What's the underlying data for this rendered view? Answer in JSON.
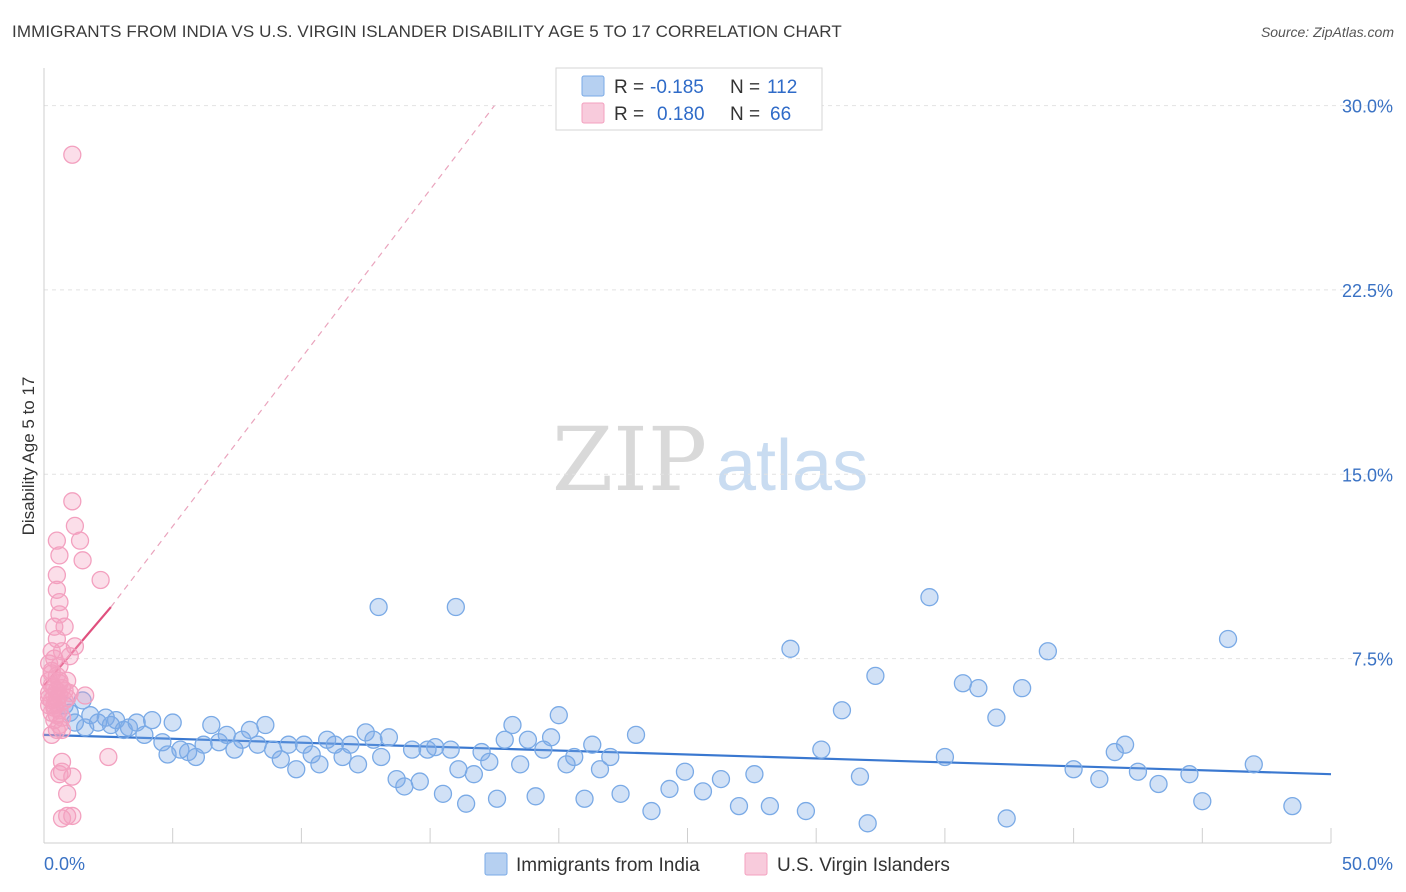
{
  "title": "IMMIGRANTS FROM INDIA VS U.S. VIRGIN ISLANDER DISABILITY AGE 5 TO 17 CORRELATION CHART",
  "source": "Source: ZipAtlas.com",
  "watermark": {
    "zip": "ZIP",
    "atlas": "atlas"
  },
  "chart_data": {
    "type": "scatter",
    "title": "IMMIGRANTS FROM INDIA VS U.S. VIRGIN ISLANDER DISABILITY AGE 5 TO 17 CORRELATION CHART",
    "xlabel": "",
    "ylabel": "Disability Age 5 to 17",
    "xlim": [
      0,
      50
    ],
    "ylim": [
      0,
      31
    ],
    "x_tick_labels": [
      "0.0%",
      "50.0%"
    ],
    "y_ticks": [
      7.5,
      15.0,
      22.5,
      30.0
    ],
    "y_tick_labels": [
      "7.5%",
      "15.0%",
      "22.5%",
      "30.0%"
    ],
    "grid": true,
    "legend_stats": [
      {
        "r_label": "R =",
        "r": "-0.185",
        "n_label": "N =",
        "n": "112"
      },
      {
        "r_label": "R =",
        "r": "0.180",
        "n_label": "N =",
        "n": "66"
      }
    ],
    "series": [
      {
        "name": "Immigrants from India",
        "color": "#7aaae6",
        "line_color": "#3a78d0",
        "trend": {
          "x0": 0,
          "y0": 4.4,
          "x1": 50,
          "y1": 2.8
        },
        "points": [
          [
            0.8,
            5.6
          ],
          [
            1.0,
            5.3
          ],
          [
            1.2,
            4.9
          ],
          [
            1.5,
            5.8
          ],
          [
            1.6,
            4.7
          ],
          [
            1.8,
            5.2
          ],
          [
            2.1,
            4.9
          ],
          [
            2.4,
            5.1
          ],
          [
            2.6,
            4.8
          ],
          [
            2.8,
            5.0
          ],
          [
            3.1,
            4.6
          ],
          [
            3.3,
            4.7
          ],
          [
            3.6,
            4.9
          ],
          [
            3.9,
            4.4
          ],
          [
            4.2,
            5.0
          ],
          [
            4.6,
            4.1
          ],
          [
            4.8,
            3.6
          ],
          [
            5.0,
            4.9
          ],
          [
            5.3,
            3.8
          ],
          [
            5.6,
            3.7
          ],
          [
            5.9,
            3.5
          ],
          [
            6.2,
            4.0
          ],
          [
            6.5,
            4.8
          ],
          [
            6.8,
            4.1
          ],
          [
            7.1,
            4.4
          ],
          [
            7.4,
            3.8
          ],
          [
            7.7,
            4.2
          ],
          [
            8.0,
            4.6
          ],
          [
            8.3,
            4.0
          ],
          [
            8.6,
            4.8
          ],
          [
            8.9,
            3.8
          ],
          [
            9.2,
            3.4
          ],
          [
            9.5,
            4.0
          ],
          [
            9.8,
            3.0
          ],
          [
            10.1,
            4.0
          ],
          [
            10.4,
            3.6
          ],
          [
            10.7,
            3.2
          ],
          [
            11.0,
            4.2
          ],
          [
            11.3,
            4.0
          ],
          [
            11.6,
            3.5
          ],
          [
            11.9,
            4.0
          ],
          [
            12.2,
            3.2
          ],
          [
            12.5,
            4.5
          ],
          [
            12.8,
            4.2
          ],
          [
            13.1,
            3.5
          ],
          [
            13.4,
            4.3
          ],
          [
            13.7,
            2.6
          ],
          [
            14.0,
            2.3
          ],
          [
            14.3,
            3.8
          ],
          [
            14.6,
            2.5
          ],
          [
            14.9,
            3.8
          ],
          [
            15.2,
            3.9
          ],
          [
            15.5,
            2.0
          ],
          [
            15.8,
            3.8
          ],
          [
            16.1,
            3.0
          ],
          [
            16.4,
            1.6
          ],
          [
            16.7,
            2.8
          ],
          [
            17.0,
            3.7
          ],
          [
            17.3,
            3.3
          ],
          [
            17.6,
            1.8
          ],
          [
            17.9,
            4.2
          ],
          [
            18.2,
            4.8
          ],
          [
            18.5,
            3.2
          ],
          [
            18.8,
            4.2
          ],
          [
            19.1,
            1.9
          ],
          [
            19.4,
            3.8
          ],
          [
            19.7,
            4.3
          ],
          [
            20.0,
            5.2
          ],
          [
            20.3,
            3.2
          ],
          [
            20.6,
            3.5
          ],
          [
            21.0,
            1.8
          ],
          [
            21.3,
            4.0
          ],
          [
            21.6,
            3.0
          ],
          [
            22.0,
            3.5
          ],
          [
            22.4,
            2.0
          ],
          [
            23.0,
            4.4
          ],
          [
            23.6,
            1.3
          ],
          [
            24.3,
            2.2
          ],
          [
            24.9,
            2.9
          ],
          [
            25.6,
            2.1
          ],
          [
            26.3,
            2.6
          ],
          [
            27.0,
            1.5
          ],
          [
            27.6,
            2.8
          ],
          [
            28.2,
            1.5
          ],
          [
            29.0,
            7.9
          ],
          [
            29.6,
            1.3
          ],
          [
            30.2,
            3.8
          ],
          [
            31.0,
            5.4
          ],
          [
            31.7,
            2.7
          ],
          [
            32.0,
            0.8
          ],
          [
            32.3,
            6.8
          ],
          [
            34.4,
            10.0
          ],
          [
            35.0,
            3.5
          ],
          [
            35.7,
            6.5
          ],
          [
            36.3,
            6.3
          ],
          [
            37.0,
            5.1
          ],
          [
            37.4,
            1.0
          ],
          [
            38.0,
            6.3
          ],
          [
            39.0,
            7.8
          ],
          [
            40.0,
            3.0
          ],
          [
            41.0,
            2.6
          ],
          [
            41.6,
            3.7
          ],
          [
            42.0,
            4.0
          ],
          [
            42.5,
            2.9
          ],
          [
            43.3,
            2.4
          ],
          [
            44.5,
            2.8
          ],
          [
            45.0,
            1.7
          ],
          [
            46.0,
            8.3
          ],
          [
            47.0,
            3.2
          ],
          [
            48.5,
            1.5
          ],
          [
            13.0,
            9.6
          ],
          [
            16.0,
            9.6
          ]
        ]
      },
      {
        "name": "U.S. Virgin Islanders",
        "color": "#f3a0bf",
        "line_color": "#e0507e",
        "trend": {
          "x0": 0,
          "y0": 6.4,
          "x1": 2.6,
          "y1": 9.6
        },
        "trend_extension": {
          "x0": 2.6,
          "y0": 9.6,
          "x1": 17.5,
          "y1": 30.0
        },
        "points": [
          [
            1.1,
            28.0
          ],
          [
            1.1,
            13.9
          ],
          [
            1.2,
            12.9
          ],
          [
            1.4,
            12.3
          ],
          [
            1.5,
            11.5
          ],
          [
            0.5,
            12.3
          ],
          [
            0.6,
            11.7
          ],
          [
            2.2,
            10.7
          ],
          [
            0.5,
            10.9
          ],
          [
            0.5,
            10.3
          ],
          [
            0.6,
            9.8
          ],
          [
            0.6,
            9.3
          ],
          [
            0.8,
            8.8
          ],
          [
            0.4,
            8.8
          ],
          [
            0.5,
            8.3
          ],
          [
            1.2,
            8.0
          ],
          [
            0.3,
            7.8
          ],
          [
            0.7,
            7.8
          ],
          [
            1.0,
            7.6
          ],
          [
            0.4,
            7.5
          ],
          [
            0.2,
            7.3
          ],
          [
            0.6,
            7.2
          ],
          [
            0.3,
            7.0
          ],
          [
            0.5,
            6.8
          ],
          [
            0.2,
            6.6
          ],
          [
            0.6,
            6.5
          ],
          [
            0.9,
            6.6
          ],
          [
            0.3,
            6.4
          ],
          [
            0.5,
            6.2
          ],
          [
            0.7,
            6.3
          ],
          [
            0.2,
            6.1
          ],
          [
            0.4,
            6.0
          ],
          [
            0.6,
            6.0
          ],
          [
            1.6,
            6.0
          ],
          [
            0.3,
            5.8
          ],
          [
            0.5,
            5.7
          ],
          [
            0.8,
            5.8
          ],
          [
            0.2,
            5.6
          ],
          [
            0.4,
            5.5
          ],
          [
            0.6,
            5.4
          ],
          [
            0.3,
            5.3
          ],
          [
            0.5,
            5.2
          ],
          [
            0.7,
            5.1
          ],
          [
            0.4,
            5.0
          ],
          [
            0.6,
            4.8
          ],
          [
            0.5,
            4.6
          ],
          [
            0.3,
            4.4
          ],
          [
            0.7,
            4.6
          ],
          [
            0.2,
            5.9
          ],
          [
            0.9,
            5.9
          ],
          [
            1.0,
            6.1
          ],
          [
            0.8,
            6.2
          ],
          [
            0.4,
            6.3
          ],
          [
            0.3,
            6.9
          ],
          [
            0.6,
            6.6
          ],
          [
            0.5,
            5.9
          ],
          [
            0.7,
            3.3
          ],
          [
            0.6,
            2.8
          ],
          [
            0.7,
            2.9
          ],
          [
            1.1,
            2.7
          ],
          [
            2.5,
            3.5
          ],
          [
            0.9,
            2.0
          ],
          [
            1.1,
            1.1
          ],
          [
            0.7,
            1.0
          ],
          [
            0.9,
            1.1
          ],
          [
            0.4,
            5.6
          ]
        ]
      }
    ]
  }
}
